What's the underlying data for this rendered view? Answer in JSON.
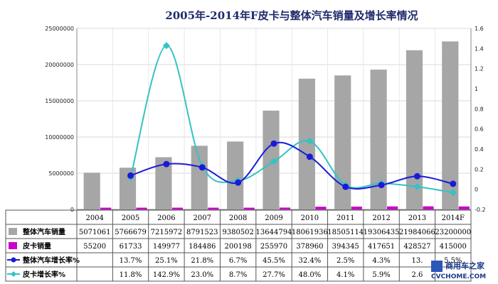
{
  "chart_data": {
    "type": "bar",
    "title": "2005年-2014年F皮卡与整体汽车销量及增长率情况",
    "categories": [
      "2004",
      "2005",
      "2006",
      "2007",
      "2008",
      "2009",
      "2010",
      "2011",
      "2012",
      "2013",
      "2014F"
    ],
    "y_left": {
      "ticks": [
        "0",
        "5000000",
        "10000000",
        "15000000",
        "20000000",
        "25000000"
      ],
      "range": [
        0,
        25000000
      ]
    },
    "y_right": {
      "ticks": [
        "-0.2",
        "0",
        "0.2",
        "0.4",
        "0.6",
        "0.8",
        "1",
        "1.2",
        "1.4",
        "1.6"
      ],
      "range": [
        -0.2,
        1.6
      ]
    },
    "grid": true,
    "series": [
      {
        "name": "整体汽车销量",
        "type": "bar",
        "axis": "left",
        "color": "#a6a6a6",
        "values": [
          5071061,
          5766679,
          7215972,
          8791523,
          9380502,
          13644794,
          18061936,
          18505114,
          19306435,
          21984066,
          23200000
        ],
        "labels": [
          "5071061",
          "5766679",
          "7215972",
          "8791523",
          "9380502",
          "13644794",
          "18061936",
          "18505114",
          "19306435",
          "21984066",
          "23200000"
        ]
      },
      {
        "name": "皮卡销量",
        "type": "bar",
        "axis": "left",
        "color": "#cc00cc",
        "values": [
          55200,
          61733,
          149977,
          184486,
          200198,
          255970,
          378960,
          394345,
          417651,
          428527,
          415000
        ],
        "labels": [
          "55200",
          "61733",
          "149977",
          "184486",
          "200198",
          "255970",
          "378960",
          "394345",
          "417651",
          "428527",
          "415000"
        ]
      },
      {
        "name": "整体汽车增长率%",
        "type": "line",
        "axis": "right",
        "color": "#1a1ad9",
        "marker": "circle",
        "values": [
          null,
          0.137,
          0.251,
          0.218,
          0.067,
          0.455,
          0.324,
          0.025,
          0.043,
          0.13,
          0.055
        ],
        "labels": [
          "",
          "13.7%",
          "25.1%",
          "21.8%",
          "6.7%",
          "45.5%",
          "32.4%",
          "2.5%",
          "4.3%",
          "13.",
          "5.5%"
        ]
      },
      {
        "name": "皮卡增长率%",
        "type": "line",
        "axis": "right",
        "color": "#33c3c3",
        "marker": "diamond",
        "values": [
          null,
          0.118,
          1.429,
          0.23,
          0.087,
          0.277,
          0.48,
          0.041,
          0.059,
          0.026,
          -0.032
        ],
        "labels": [
          "",
          "11.8%",
          "142.9%",
          "23.0%",
          "8.7%",
          "27.7%",
          "48.0%",
          "4.1%",
          "5.9%",
          "2.6",
          ""
        ]
      }
    ]
  },
  "watermark": {
    "line1": "商用车之家",
    "line2": "CVCHOME.COM"
  }
}
